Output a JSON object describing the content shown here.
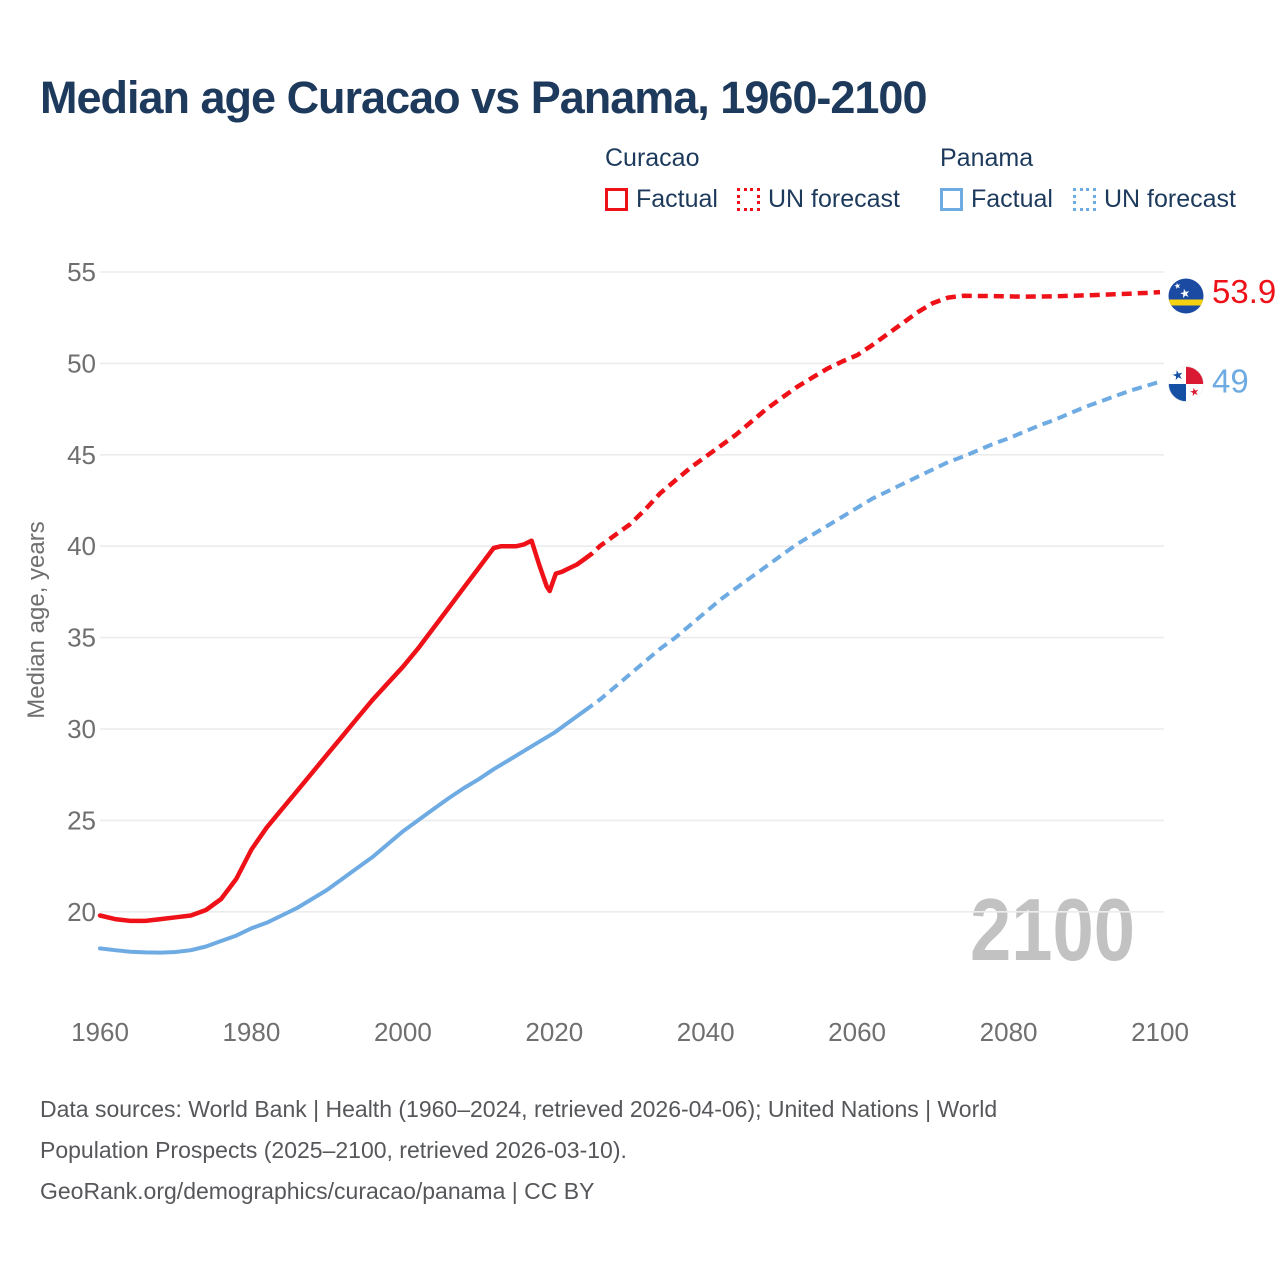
{
  "title": "Median age Curacao vs Panama, 1960-2100",
  "legend": {
    "groups": [
      {
        "name": "Curacao",
        "items": [
          {
            "label": "Factual",
            "style": "solid",
            "color": "#ee1118"
          },
          {
            "label": "UN forecast",
            "style": "dotted",
            "color": "#ee1118"
          }
        ]
      },
      {
        "name": "Panama",
        "items": [
          {
            "label": "Factual",
            "style": "solid",
            "color": "#6fabe3"
          },
          {
            "label": "UN forecast",
            "style": "dotted",
            "color": "#6fabe3"
          }
        ]
      }
    ]
  },
  "watermark": "2100",
  "footer": {
    "line1": "Data sources: World Bank | Health (1960–2024, retrieved 2026-04-06); United Nations | World",
    "line2": "Population Prospects (2025–2100, retrieved 2026-03-10).",
    "line3": "GeoRank.org/demographics/curacao/panama | CC BY"
  },
  "colors": {
    "curacao": "#ee1118",
    "panama": "#6fabe3",
    "title_text": "#1d3a5c",
    "axis_text": "#6f6f6f",
    "gridline": "#ececec",
    "watermark": "#c2c2c2",
    "footer_text": "#56575a",
    "flag_blue": "#1b4aa2",
    "flag_yellow": "#f5d20f",
    "flag_red": "#da1a32",
    "flag_panama_blue": "#1550a5"
  },
  "chart_data": {
    "type": "line",
    "title": "Median age Curacao vs Panama, 1960-2100",
    "xlabel": "",
    "ylabel": "Median age, years",
    "x_ticks": [
      1960,
      1980,
      2000,
      2020,
      2040,
      2060,
      2080,
      2100
    ],
    "y_ticks": [
      20,
      25,
      30,
      35,
      40,
      45,
      50,
      55
    ],
    "xlim": [
      1960,
      2100
    ],
    "ylim": [
      17.5,
      55
    ],
    "grid": "horizontal-only",
    "legend_position": "top",
    "series": [
      {
        "name": "Curacao — Factual",
        "color": "#ee1118",
        "style": "solid",
        "points": [
          [
            1960,
            19.8
          ],
          [
            1962,
            19.6
          ],
          [
            1964,
            19.5
          ],
          [
            1966,
            19.5
          ],
          [
            1968,
            19.6
          ],
          [
            1970,
            19.7
          ],
          [
            1972,
            19.8
          ],
          [
            1974,
            20.1
          ],
          [
            1976,
            20.7
          ],
          [
            1978,
            21.8
          ],
          [
            1980,
            23.4
          ],
          [
            1982,
            24.6
          ],
          [
            1984,
            25.6
          ],
          [
            1986,
            26.6
          ],
          [
            1988,
            27.6
          ],
          [
            1990,
            28.6
          ],
          [
            1992,
            29.6
          ],
          [
            1994,
            30.6
          ],
          [
            1996,
            31.6
          ],
          [
            1998,
            32.5
          ],
          [
            2000,
            33.4
          ],
          [
            2002,
            34.4
          ],
          [
            2004,
            35.5
          ],
          [
            2006,
            36.6
          ],
          [
            2008,
            37.7
          ],
          [
            2010,
            38.8
          ],
          [
            2012,
            39.9
          ],
          [
            2013,
            40.0
          ],
          [
            2015,
            40.0
          ],
          [
            2016,
            40.1
          ],
          [
            2017,
            40.3
          ],
          [
            2018,
            39.0
          ],
          [
            2019,
            37.8
          ],
          [
            2019.4,
            37.55
          ],
          [
            2020.2,
            38.5
          ],
          [
            2021,
            38.6
          ],
          [
            2022,
            38.8
          ],
          [
            2023,
            39.0
          ],
          [
            2024,
            39.3
          ]
        ]
      },
      {
        "name": "Curacao — UN forecast",
        "color": "#ee1118",
        "style": "dashed",
        "points": [
          [
            2024,
            39.3
          ],
          [
            2025,
            39.6
          ],
          [
            2026,
            40.0
          ],
          [
            2028,
            40.6
          ],
          [
            2030,
            41.2
          ],
          [
            2032,
            42.0
          ],
          [
            2034,
            42.9
          ],
          [
            2036,
            43.6
          ],
          [
            2038,
            44.3
          ],
          [
            2040,
            44.9
          ],
          [
            2042,
            45.5
          ],
          [
            2044,
            46.1
          ],
          [
            2046,
            46.8
          ],
          [
            2048,
            47.5
          ],
          [
            2050,
            48.1
          ],
          [
            2052,
            48.7
          ],
          [
            2054,
            49.2
          ],
          [
            2056,
            49.7
          ],
          [
            2058,
            50.1
          ],
          [
            2060,
            50.45
          ],
          [
            2062,
            51.0
          ],
          [
            2064,
            51.6
          ],
          [
            2066,
            52.2
          ],
          [
            2068,
            52.8
          ],
          [
            2070,
            53.3
          ],
          [
            2072,
            53.6
          ],
          [
            2074,
            53.7
          ],
          [
            2078,
            53.68
          ],
          [
            2082,
            53.65
          ],
          [
            2086,
            53.67
          ],
          [
            2090,
            53.72
          ],
          [
            2094,
            53.78
          ],
          [
            2098,
            53.85
          ],
          [
            2100,
            53.9
          ]
        ]
      },
      {
        "name": "Panama — Factual",
        "color": "#6fabe3",
        "style": "solid",
        "points": [
          [
            1960,
            18.0
          ],
          [
            1962,
            17.9
          ],
          [
            1964,
            17.82
          ],
          [
            1966,
            17.78
          ],
          [
            1968,
            17.77
          ],
          [
            1970,
            17.8
          ],
          [
            1972,
            17.9
          ],
          [
            1974,
            18.1
          ],
          [
            1976,
            18.4
          ],
          [
            1978,
            18.7
          ],
          [
            1980,
            19.1
          ],
          [
            1982,
            19.4
          ],
          [
            1984,
            19.8
          ],
          [
            1986,
            20.2
          ],
          [
            1988,
            20.7
          ],
          [
            1990,
            21.2
          ],
          [
            1992,
            21.8
          ],
          [
            1994,
            22.4
          ],
          [
            1996,
            23.0
          ],
          [
            1998,
            23.7
          ],
          [
            2000,
            24.4
          ],
          [
            2002,
            25.0
          ],
          [
            2004,
            25.6
          ],
          [
            2006,
            26.2
          ],
          [
            2008,
            26.75
          ],
          [
            2010,
            27.25
          ],
          [
            2012,
            27.8
          ],
          [
            2014,
            28.3
          ],
          [
            2016,
            28.8
          ],
          [
            2018,
            29.3
          ],
          [
            2020,
            29.8
          ],
          [
            2022,
            30.4
          ],
          [
            2024,
            31.0
          ]
        ]
      },
      {
        "name": "Panama — UN forecast",
        "color": "#6fabe3",
        "style": "dashed",
        "points": [
          [
            2024,
            31.0
          ],
          [
            2026,
            31.6
          ],
          [
            2028,
            32.3
          ],
          [
            2030,
            33.0
          ],
          [
            2032,
            33.7
          ],
          [
            2034,
            34.4
          ],
          [
            2036,
            35.0
          ],
          [
            2038,
            35.7
          ],
          [
            2040,
            36.4
          ],
          [
            2042,
            37.1
          ],
          [
            2044,
            37.7
          ],
          [
            2046,
            38.3
          ],
          [
            2048,
            38.9
          ],
          [
            2050,
            39.5
          ],
          [
            2052,
            40.1
          ],
          [
            2054,
            40.6
          ],
          [
            2056,
            41.1
          ],
          [
            2058,
            41.6
          ],
          [
            2060,
            42.1
          ],
          [
            2062,
            42.6
          ],
          [
            2064,
            43.0
          ],
          [
            2066,
            43.4
          ],
          [
            2068,
            43.8
          ],
          [
            2070,
            44.2
          ],
          [
            2072,
            44.6
          ],
          [
            2074,
            44.9
          ],
          [
            2076,
            45.25
          ],
          [
            2078,
            45.6
          ],
          [
            2080,
            45.9
          ],
          [
            2082,
            46.25
          ],
          [
            2084,
            46.6
          ],
          [
            2086,
            46.9
          ],
          [
            2088,
            47.25
          ],
          [
            2090,
            47.6
          ],
          [
            2092,
            47.9
          ],
          [
            2094,
            48.2
          ],
          [
            2096,
            48.5
          ],
          [
            2098,
            48.75
          ],
          [
            2100,
            49.0
          ]
        ]
      }
    ],
    "end_labels": [
      {
        "series": "Curacao",
        "text": "53.9",
        "value": 53.9,
        "color": "#ee1118",
        "flag": "curacao"
      },
      {
        "series": "Panama",
        "text": "49",
        "value": 49,
        "color": "#6fabe3",
        "flag": "panama"
      }
    ]
  }
}
